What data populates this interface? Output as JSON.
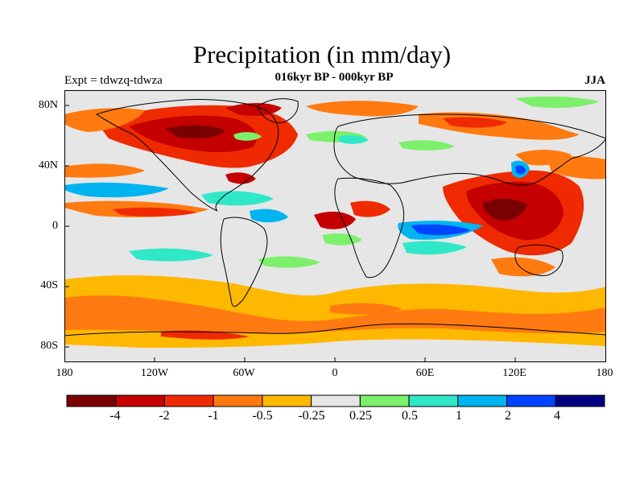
{
  "title": "Precipitation (in mm/day)",
  "subtitle": "016kyr BP - 000kyr BP",
  "experiment": "Expt = tdwzq-tdwza",
  "season": "JJA",
  "lat_labels": [
    "80N",
    "40N",
    "0",
    "40S",
    "80S"
  ],
  "lon_labels": [
    "180",
    "120W",
    "60W",
    "0",
    "60E",
    "120E",
    "180"
  ],
  "colorbar": {
    "colors": [
      "#7a0000",
      "#c40000",
      "#f02a00",
      "#ff7a10",
      "#ffb800",
      "#e6e6e6",
      "#7cf06a",
      "#30e8c8",
      "#00b4f0",
      "#0044ff",
      "#000080"
    ],
    "labels": [
      "-4",
      "-2",
      "-1",
      "-0.5",
      "-0.25",
      "0.25",
      "0.5",
      "1",
      "2",
      "4"
    ]
  },
  "colors": {
    "ocean_neutral": "#e6e6e6",
    "coast": "#000000"
  }
}
